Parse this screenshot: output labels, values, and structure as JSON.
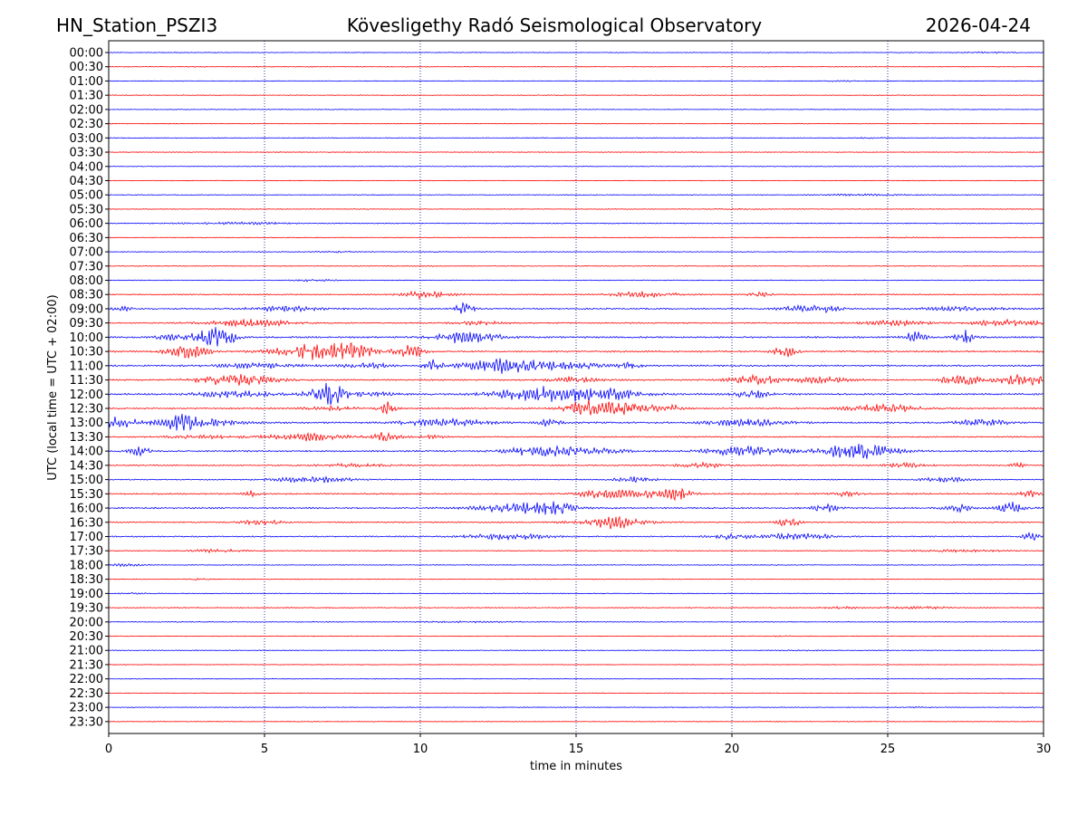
{
  "chart_data": {
    "type": "line",
    "header": {
      "station": "HN_Station_PSZI3",
      "observatory": "Kövesligethy Radó Seismological Observatory",
      "date": "2026-04-24"
    },
    "xlabel": "time in minutes",
    "ylabel": "UTC (local time = UTC + 02:00)",
    "xlim": [
      0,
      30
    ],
    "x_ticks": [
      0,
      5,
      10,
      15,
      20,
      25,
      30
    ],
    "trace_colors": [
      "#0000ff",
      "#ff0000"
    ],
    "grid_color": "#00008b",
    "rows": [
      {
        "label": "00:00",
        "activity": 0.05
      },
      {
        "label": "00:30",
        "activity": 0.03
      },
      {
        "label": "01:00",
        "activity": 0.05
      },
      {
        "label": "01:30",
        "activity": 0.03
      },
      {
        "label": "02:00",
        "activity": 0.03
      },
      {
        "label": "02:30",
        "activity": 0.03
      },
      {
        "label": "03:00",
        "activity": 0.04
      },
      {
        "label": "03:30",
        "activity": 0.03
      },
      {
        "label": "04:00",
        "activity": 0.03
      },
      {
        "label": "04:30",
        "activity": 0.03
      },
      {
        "label": "05:00",
        "activity": 0.05
      },
      {
        "label": "05:30",
        "activity": 0.04
      },
      {
        "label": "06:00",
        "activity": 0.12
      },
      {
        "label": "06:30",
        "activity": 0.05
      },
      {
        "label": "07:00",
        "activity": 0.07
      },
      {
        "label": "07:30",
        "activity": 0.04
      },
      {
        "label": "08:00",
        "activity": 0.08
      },
      {
        "label": "08:30",
        "activity": 0.25
      },
      {
        "label": "09:00",
        "activity": 0.35
      },
      {
        "label": "09:30",
        "activity": 0.3
      },
      {
        "label": "10:00",
        "activity": 0.5
      },
      {
        "label": "10:30",
        "activity": 0.45
      },
      {
        "label": "11:00",
        "activity": 0.45
      },
      {
        "label": "11:30",
        "activity": 0.4
      },
      {
        "label": "12:00",
        "activity": 0.5
      },
      {
        "label": "12:30",
        "activity": 0.4
      },
      {
        "label": "13:00",
        "activity": 0.5
      },
      {
        "label": "13:30",
        "activity": 0.3
      },
      {
        "label": "14:00",
        "activity": 0.45
      },
      {
        "label": "14:30",
        "activity": 0.3
      },
      {
        "label": "15:00",
        "activity": 0.2
      },
      {
        "label": "15:30",
        "activity": 0.4
      },
      {
        "label": "16:00",
        "activity": 0.4
      },
      {
        "label": "16:30",
        "activity": 0.3
      },
      {
        "label": "17:00",
        "activity": 0.3
      },
      {
        "label": "17:30",
        "activity": 0.12
      },
      {
        "label": "18:00",
        "activity": 0.07
      },
      {
        "label": "18:30",
        "activity": 0.05
      },
      {
        "label": "19:00",
        "activity": 0.06
      },
      {
        "label": "19:30",
        "activity": 0.12
      },
      {
        "label": "20:00",
        "activity": 0.04
      },
      {
        "label": "20:30",
        "activity": 0.04
      },
      {
        "label": "21:00",
        "activity": 0.04
      },
      {
        "label": "21:30",
        "activity": 0.03
      },
      {
        "label": "22:00",
        "activity": 0.03
      },
      {
        "label": "22:30",
        "activity": 0.03
      },
      {
        "label": "23:00",
        "activity": 0.04
      },
      {
        "label": "23:30",
        "activity": 0.03
      }
    ]
  }
}
